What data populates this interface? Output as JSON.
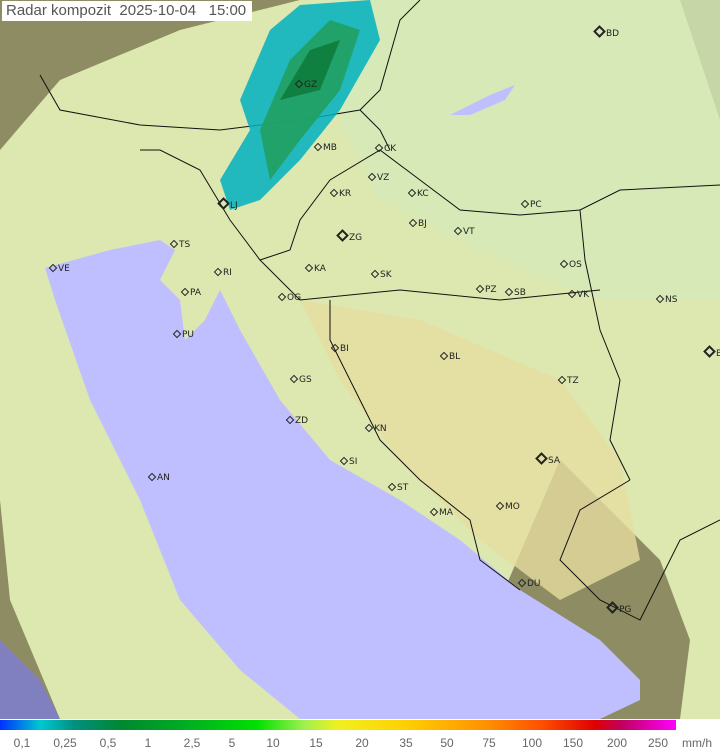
{
  "title": "Radar kompozit  2025-10-04   15:00",
  "cities": [
    "BD",
    "GZ",
    "MB",
    "CK",
    "VZ",
    "KR",
    "KC",
    "LJ",
    "BJ",
    "PC",
    "ZG",
    "VT",
    "TS",
    "VE",
    "KA",
    "SK",
    "OS",
    "RI",
    "PA",
    "OG",
    "PZ",
    "SB",
    "VK",
    "NS",
    "PU",
    "BI",
    "BL",
    "BG",
    "GS",
    "TZ",
    "ZD",
    "KN",
    "SA",
    "AN",
    "SI",
    "ST",
    "MA",
    "MO",
    "DU",
    "PG"
  ],
  "legend": {
    "ticks": [
      "0,1",
      "0,25",
      "0,5",
      "1",
      "2,5",
      "5",
      "10",
      "15",
      "20",
      "35",
      "50",
      "75",
      "100",
      "150",
      "200",
      "250"
    ],
    "unit": "mm/h"
  },
  "colors": {
    "sea": "#bfbfff",
    "land": "#d8e8a8",
    "outside": "#8a8a60",
    "rain_low": "#00b8c0",
    "rain_mid": "#008838"
  }
}
